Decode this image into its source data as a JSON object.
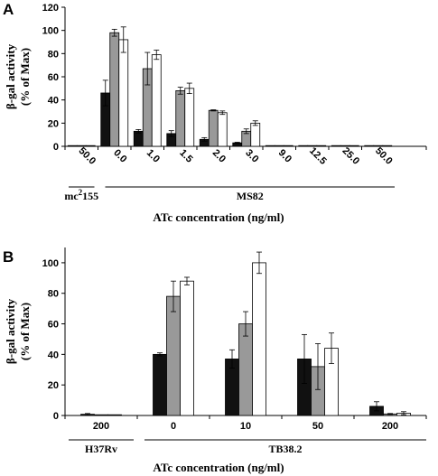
{
  "chart_data": [
    {
      "type": "bar",
      "panel_label": "A",
      "ylabel_line1": "β-gal activity",
      "ylabel_line2": "(% of Max)",
      "ylim": [
        0,
        120
      ],
      "yticks": [
        "0",
        "20",
        "40",
        "60",
        "80",
        "100",
        "120"
      ],
      "categories": [
        "50.0",
        "0.0",
        "1.0",
        "1.5",
        "2.0",
        "3.0",
        "9.0",
        "12.5",
        "25.0",
        "50.0"
      ],
      "groups": [
        {
          "label_base": "mc",
          "label_sup": "2",
          "label_tail": "155"
        },
        {
          "label_base": "MS82",
          "label_sup": "",
          "label_tail": ""
        }
      ],
      "xlabel": "ATc concentration (ng/ml)",
      "series_colors": [
        "#111111",
        "#999999",
        "#ffffff"
      ],
      "series": [
        {
          "values": [
            0.5,
            46,
            13,
            11,
            6,
            3,
            0.5,
            0.5,
            0.5,
            0.5
          ],
          "errors": [
            0,
            11,
            1.5,
            2.5,
            1.5,
            0.5,
            0,
            0,
            0,
            0
          ]
        },
        {
          "values": [
            0.5,
            98,
            67,
            48,
            31,
            13,
            0.5,
            0.5,
            0.5,
            0.5
          ],
          "errors": [
            0,
            3,
            14,
            3,
            0.5,
            2,
            0,
            0,
            0,
            0
          ]
        },
        {
          "values": [
            0.5,
            92,
            79,
            50,
            29,
            20,
            0.5,
            0.5,
            0.5,
            0.5
          ],
          "errors": [
            0,
            11,
            4,
            4.5,
            1.5,
            2,
            0,
            0,
            0,
            0
          ]
        }
      ]
    },
    {
      "type": "bar",
      "panel_label": "B",
      "ylabel_line1": "β-gal activity",
      "ylabel_line2": "(% of Max)",
      "ylim": [
        0,
        110
      ],
      "yticks": [
        "0",
        "20",
        "40",
        "60",
        "80",
        "100"
      ],
      "categories": [
        "200",
        "0",
        "10",
        "50",
        "200"
      ],
      "groups": [
        {
          "label_base": "H37Rv",
          "label_sup": "",
          "label_tail": ""
        },
        {
          "label_base": "TB38.2",
          "label_sup": "",
          "label_tail": ""
        }
      ],
      "xlabel": "ATc concentration (ng/ml)",
      "series_colors": [
        "#111111",
        "#999999",
        "#ffffff"
      ],
      "series": [
        {
          "values": [
            0.8,
            40,
            37,
            37,
            6
          ],
          "errors": [
            0.5,
            1,
            6,
            16,
            3
          ]
        },
        {
          "values": [
            0.3,
            78,
            60,
            32,
            1
          ],
          "errors": [
            0,
            10,
            8,
            15,
            0.3
          ]
        },
        {
          "values": [
            0.3,
            88,
            100,
            44,
            1.5
          ],
          "errors": [
            0,
            2.5,
            7,
            10,
            1
          ]
        }
      ]
    }
  ]
}
